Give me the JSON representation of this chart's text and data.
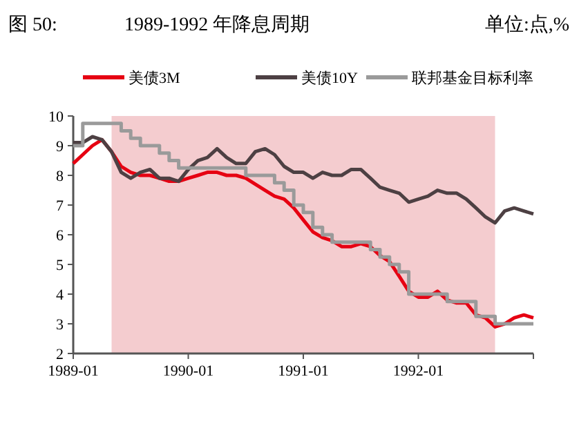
{
  "chart_data": {
    "type": "line",
    "title": "1989-1992 年降息周期",
    "annotations": [
      "图 50:",
      "单位:点,%"
    ],
    "x": [
      "1989-01",
      "1989-02",
      "1989-03",
      "1989-04",
      "1989-05",
      "1989-06",
      "1989-07",
      "1989-08",
      "1989-09",
      "1989-10",
      "1989-11",
      "1989-12",
      "1990-01",
      "1990-02",
      "1990-03",
      "1990-04",
      "1990-05",
      "1990-06",
      "1990-07",
      "1990-08",
      "1990-09",
      "1990-10",
      "1990-11",
      "1990-12",
      "1991-01",
      "1991-02",
      "1991-03",
      "1991-04",
      "1991-05",
      "1991-06",
      "1991-07",
      "1991-08",
      "1991-09",
      "1991-10",
      "1991-11",
      "1991-12",
      "1992-01",
      "1992-02",
      "1992-03",
      "1992-04",
      "1992-05",
      "1992-06",
      "1992-07",
      "1992-08",
      "1992-09",
      "1992-10",
      "1992-11",
      "1992-12",
      "1993-01"
    ],
    "series": [
      {
        "name": "美债3M",
        "color": "#e60012",
        "values": [
          8.4,
          8.7,
          9.0,
          9.2,
          8.8,
          8.3,
          8.1,
          8.0,
          8.0,
          7.9,
          7.8,
          7.8,
          7.9,
          8.0,
          8.1,
          8.1,
          8.0,
          8.0,
          7.9,
          7.7,
          7.5,
          7.3,
          7.2,
          6.9,
          6.5,
          6.1,
          5.9,
          5.8,
          5.6,
          5.6,
          5.7,
          5.6,
          5.3,
          5.1,
          4.6,
          4.1,
          3.9,
          3.9,
          4.1,
          3.8,
          3.7,
          3.7,
          3.3,
          3.2,
          2.9,
          3.0,
          3.2,
          3.3,
          3.2
        ]
      },
      {
        "name": "美债10Y",
        "color": "#4d4043",
        "values": [
          9.1,
          9.1,
          9.3,
          9.2,
          8.8,
          8.1,
          7.9,
          8.1,
          8.2,
          7.9,
          7.9,
          7.8,
          8.2,
          8.5,
          8.6,
          8.9,
          8.6,
          8.4,
          8.4,
          8.8,
          8.9,
          8.7,
          8.3,
          8.1,
          8.1,
          7.9,
          8.1,
          8.0,
          8.0,
          8.2,
          8.2,
          7.9,
          7.6,
          7.5,
          7.4,
          7.1,
          7.2,
          7.3,
          7.5,
          7.4,
          7.4,
          7.2,
          6.9,
          6.6,
          6.4,
          6.8,
          6.9,
          6.8,
          6.7
        ]
      },
      {
        "name": "联邦基金目标利率",
        "color": "#9a9a9a",
        "type": "step",
        "values": [
          9.0,
          9.75,
          9.75,
          9.75,
          9.75,
          9.5,
          9.25,
          9.0,
          9.0,
          8.75,
          8.5,
          8.25,
          8.25,
          8.25,
          8.25,
          8.25,
          8.25,
          8.25,
          8.0,
          8.0,
          8.0,
          7.75,
          7.5,
          7.0,
          6.75,
          6.25,
          6.0,
          5.75,
          5.75,
          5.75,
          5.75,
          5.5,
          5.25,
          5.0,
          4.75,
          4.0,
          4.0,
          4.0,
          4.0,
          3.75,
          3.75,
          3.75,
          3.25,
          3.25,
          3.0,
          3.0,
          3.0,
          3.0,
          3.0
        ]
      }
    ],
    "bands": [
      {
        "axis": "x",
        "from": "1989-05",
        "to": "1992-09",
        "color": "#f4cccf"
      }
    ],
    "xlim": [
      "1989-01",
      "1993-01"
    ],
    "xticks": [
      "1989-01",
      "1990-01",
      "1991-01",
      "1992-01"
    ],
    "ylim": [
      2,
      10
    ],
    "yticks": [
      2,
      3,
      4,
      5,
      6,
      7,
      8,
      9,
      10
    ],
    "legend": "top"
  }
}
